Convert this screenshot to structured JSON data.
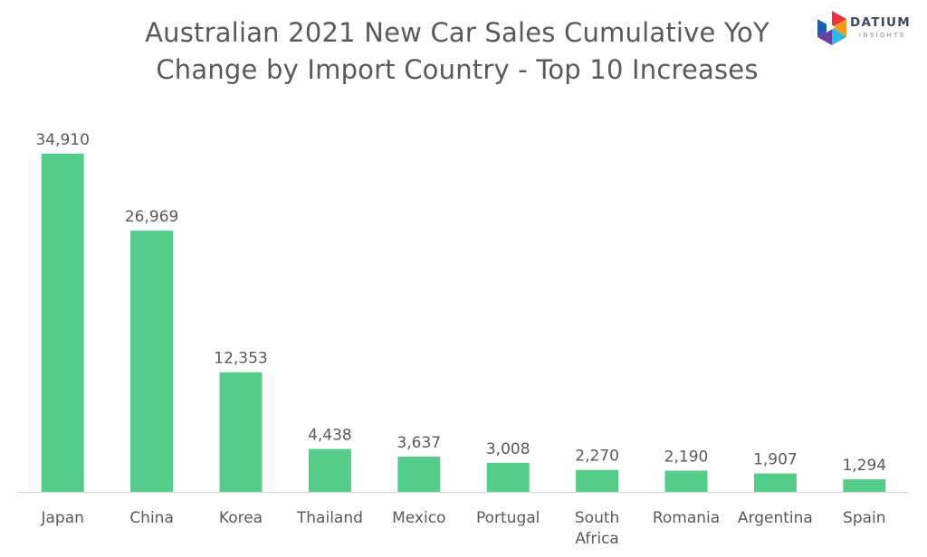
{
  "chart_data": {
    "type": "bar",
    "title_line1": "Australian 2021 New Car Sales Cumulative YoY",
    "title_line2": "Change by Import Country - Top 10 Increases",
    "categories": [
      "Japan",
      "China",
      "Korea",
      "Thailand",
      "Mexico",
      "Portugal",
      "South Africa",
      "Romania",
      "Argentina",
      "Spain"
    ],
    "values": [
      34910,
      26969,
      12353,
      4438,
      3637,
      3008,
      2270,
      2190,
      1907,
      1294
    ],
    "value_labels": [
      "34,910",
      "26,969",
      "12,353",
      "4,438",
      "3,637",
      "3,008",
      "2,270",
      "2,190",
      "1,907",
      "1,294"
    ],
    "bar_color": "#56cc8b",
    "grid": false,
    "legend": "none"
  },
  "logo": {
    "name": "DATIUM",
    "tagline": "INSIGHTS",
    "colors": [
      "#e8333c",
      "#f49a1c",
      "#2fb7e6",
      "#6b3fa0",
      "#1c5fae"
    ]
  }
}
